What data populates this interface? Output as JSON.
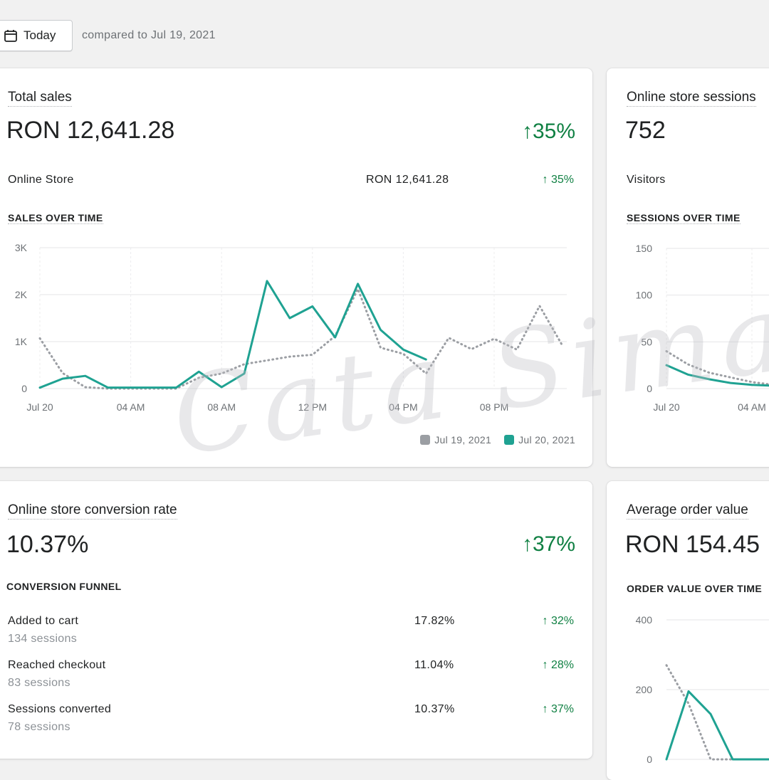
{
  "header": {
    "date_button": "Today",
    "compare_text": "compared to Jul 19, 2021"
  },
  "colors": {
    "current": "#1fa292",
    "previous": "#9b9ea3",
    "positive": "#108043"
  },
  "total_sales": {
    "title": "Total sales",
    "value": "RON 12,641.28",
    "trend": "35%",
    "rows": [
      {
        "label": "Online Store",
        "value": "RON 12,641.28",
        "trend": "35%"
      }
    ],
    "chart_title": "SALES OVER TIME",
    "legend": [
      "Jul 19, 2021",
      "Jul 20, 2021"
    ]
  },
  "sessions": {
    "title": "Online store sessions",
    "value": "752",
    "rows": [
      {
        "label": "Visitors"
      }
    ],
    "chart_title": "SESSIONS OVER TIME"
  },
  "conversion": {
    "title": "Online store conversion rate",
    "value": "10.37%",
    "trend": "37%",
    "funnel_title": "CONVERSION FUNNEL",
    "rows": [
      {
        "label": "Added to cart",
        "sub": "134 sessions",
        "value": "17.82%",
        "trend": "32%"
      },
      {
        "label": "Reached checkout",
        "sub": "83 sessions",
        "value": "11.04%",
        "trend": "28%"
      },
      {
        "label": "Sessions converted",
        "sub": "78 sessions",
        "value": "10.37%",
        "trend": "37%"
      }
    ]
  },
  "aov": {
    "title": "Average order value",
    "value": "RON 154.45",
    "chart_title": "ORDER VALUE OVER TIME"
  },
  "watermark": "Cata Sima",
  "chart_data": [
    {
      "type": "line",
      "title": "SALES OVER TIME",
      "x_tick_labels": [
        "Jul 20",
        "04 AM",
        "08 AM",
        "12 PM",
        "04 PM",
        "08 PM"
      ],
      "y_tick_labels": [
        "0",
        "1K",
        "2K",
        "3K"
      ],
      "ylim": [
        0,
        3000
      ],
      "x_hours": [
        0,
        1,
        2,
        3,
        4,
        5,
        6,
        7,
        8,
        9,
        10,
        11,
        12,
        13,
        14,
        15,
        16,
        17,
        18,
        19,
        20,
        21,
        22,
        23
      ],
      "series": [
        {
          "name": "Jul 19, 2021",
          "style": "dotted",
          "values": [
            1070,
            330,
            30,
            0,
            0,
            0,
            0,
            230,
            320,
            520,
            600,
            680,
            720,
            1120,
            2120,
            870,
            740,
            320,
            1080,
            840,
            1060,
            830,
            1760,
            920
          ]
        },
        {
          "name": "Jul 20, 2021",
          "style": "solid",
          "values": [
            20,
            210,
            270,
            20,
            20,
            20,
            20,
            360,
            30,
            320,
            2290,
            1500,
            1750,
            1090,
            2230,
            1250,
            830,
            620
          ]
        }
      ],
      "grid": true,
      "legend": "bottom-right"
    },
    {
      "type": "line",
      "title": "SESSIONS OVER TIME",
      "x_tick_labels": [
        "Jul 20",
        "04 AM"
      ],
      "y_tick_labels": [
        "0",
        "50",
        "100",
        "150"
      ],
      "ylim": [
        0,
        150
      ],
      "series": [
        {
          "style": "dotted",
          "values": [
            40,
            26,
            17,
            12,
            7,
            4,
            4
          ]
        },
        {
          "style": "solid",
          "values": [
            25,
            15,
            10,
            6,
            4,
            3,
            4
          ]
        }
      ],
      "grid": true
    },
    {
      "type": "line",
      "title": "ORDER VALUE OVER TIME",
      "y_tick_labels": [
        "0",
        "200",
        "400"
      ],
      "ylim": [
        0,
        400
      ],
      "series": [
        {
          "style": "dotted",
          "values": [
            270,
            160,
            0,
            0,
            0,
            0
          ]
        },
        {
          "style": "solid",
          "values": [
            0,
            195,
            130,
            0,
            0,
            0
          ]
        }
      ],
      "grid": true
    }
  ]
}
